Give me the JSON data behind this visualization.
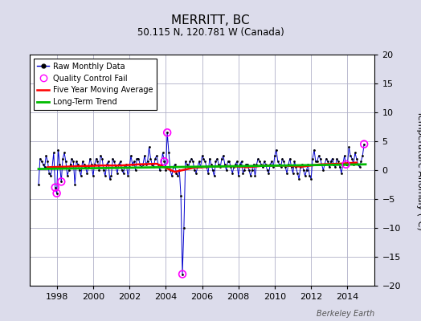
{
  "title": "MERRITT, BC",
  "subtitle": "50.115 N, 120.781 W (Canada)",
  "ylabel": "Temperature Anomaly (°C)",
  "watermark": "Berkeley Earth",
  "xlim": [
    1996.5,
    2015.5
  ],
  "ylim": [
    -20,
    20
  ],
  "yticks": [
    -20,
    -15,
    -10,
    -5,
    0,
    5,
    10,
    15,
    20
  ],
  "xticks": [
    1998,
    2000,
    2002,
    2004,
    2006,
    2008,
    2010,
    2012,
    2014
  ],
  "bg_color": "#dcdceb",
  "plot_bg_color": "#ffffff",
  "grid_color": "#b0b0c8",
  "raw_color": "#0000cc",
  "qc_fail_color": "#ff00ff",
  "moving_avg_color": "#ff0000",
  "trend_color": "#00bb00",
  "raw_data": {
    "x": [
      1997.0,
      1997.083,
      1997.167,
      1997.25,
      1997.333,
      1997.417,
      1997.5,
      1997.583,
      1997.667,
      1997.75,
      1997.833,
      1997.917,
      1998.0,
      1998.083,
      1998.167,
      1998.25,
      1998.333,
      1998.417,
      1998.5,
      1998.583,
      1998.667,
      1998.75,
      1998.833,
      1998.917,
      1999.0,
      1999.083,
      1999.167,
      1999.25,
      1999.333,
      1999.417,
      1999.5,
      1999.583,
      1999.667,
      1999.75,
      1999.833,
      1999.917,
      2000.0,
      2000.083,
      2000.167,
      2000.25,
      2000.333,
      2000.417,
      2000.5,
      2000.583,
      2000.667,
      2000.75,
      2000.833,
      2000.917,
      2001.0,
      2001.083,
      2001.167,
      2001.25,
      2001.333,
      2001.417,
      2001.5,
      2001.583,
      2001.667,
      2001.75,
      2001.833,
      2001.917,
      2002.0,
      2002.083,
      2002.167,
      2002.25,
      2002.333,
      2002.417,
      2002.5,
      2002.583,
      2002.667,
      2002.75,
      2002.833,
      2002.917,
      2003.0,
      2003.083,
      2003.167,
      2003.25,
      2003.333,
      2003.417,
      2003.5,
      2003.583,
      2003.667,
      2003.75,
      2003.833,
      2003.917,
      2004.0,
      2004.083,
      2004.167,
      2004.25,
      2004.333,
      2004.417,
      2004.5,
      2004.583,
      2004.667,
      2004.75,
      2004.833,
      2004.917,
      2005.0,
      2005.083,
      2005.167,
      2005.25,
      2005.333,
      2005.417,
      2005.5,
      2005.583,
      2005.667,
      2005.75,
      2005.833,
      2005.917,
      2006.0,
      2006.083,
      2006.167,
      2006.25,
      2006.333,
      2006.417,
      2006.5,
      2006.583,
      2006.667,
      2006.75,
      2006.833,
      2006.917,
      2007.0,
      2007.083,
      2007.167,
      2007.25,
      2007.333,
      2007.417,
      2007.5,
      2007.583,
      2007.667,
      2007.75,
      2007.833,
      2007.917,
      2008.0,
      2008.083,
      2008.167,
      2008.25,
      2008.333,
      2008.417,
      2008.5,
      2008.583,
      2008.667,
      2008.75,
      2008.833,
      2008.917,
      2009.0,
      2009.083,
      2009.167,
      2009.25,
      2009.333,
      2009.417,
      2009.5,
      2009.583,
      2009.667,
      2009.75,
      2009.833,
      2009.917,
      2010.0,
      2010.083,
      2010.167,
      2010.25,
      2010.333,
      2010.417,
      2010.5,
      2010.583,
      2010.667,
      2010.75,
      2010.833,
      2010.917,
      2011.0,
      2011.083,
      2011.167,
      2011.25,
      2011.333,
      2011.417,
      2011.5,
      2011.583,
      2011.667,
      2011.75,
      2011.833,
      2011.917,
      2012.0,
      2012.083,
      2012.167,
      2012.25,
      2012.333,
      2012.417,
      2012.5,
      2012.583,
      2012.667,
      2012.75,
      2012.833,
      2012.917,
      2013.0,
      2013.083,
      2013.167,
      2013.25,
      2013.333,
      2013.417,
      2013.5,
      2013.583,
      2013.667,
      2013.75,
      2013.833,
      2013.917,
      2014.0,
      2014.083,
      2014.167,
      2014.25,
      2014.333,
      2014.417,
      2014.5,
      2014.583,
      2014.667,
      2014.75,
      2014.833,
      2014.917
    ],
    "y": [
      -2.5,
      2.0,
      1.5,
      1.0,
      0.5,
      2.5,
      1.5,
      -0.5,
      -1.0,
      0.5,
      3.0,
      -3.0,
      -4.0,
      3.5,
      1.0,
      -2.0,
      2.0,
      3.0,
      1.5,
      -1.0,
      0.0,
      1.0,
      2.0,
      1.5,
      -2.5,
      1.5,
      1.0,
      0.0,
      -1.0,
      1.5,
      1.0,
      0.5,
      -0.5,
      0.5,
      2.0,
      1.0,
      -1.0,
      1.0,
      2.0,
      1.5,
      0.0,
      2.5,
      2.0,
      0.0,
      -1.0,
      1.0,
      1.5,
      -1.5,
      -1.0,
      2.0,
      1.5,
      0.5,
      -0.5,
      1.0,
      1.5,
      0.0,
      -0.5,
      0.5,
      1.0,
      -1.0,
      0.5,
      2.5,
      1.0,
      1.5,
      0.0,
      2.0,
      2.0,
      1.0,
      0.5,
      1.0,
      2.5,
      1.0,
      1.5,
      4.0,
      2.0,
      1.0,
      0.5,
      2.0,
      2.5,
      1.0,
      0.0,
      1.0,
      3.0,
      1.5,
      0.0,
      6.5,
      3.0,
      0.0,
      -1.0,
      0.5,
      1.0,
      -0.5,
      -1.0,
      0.0,
      -4.5,
      -18.0,
      -10.0,
      1.5,
      1.0,
      0.5,
      1.5,
      2.0,
      1.5,
      0.0,
      -0.5,
      0.5,
      1.5,
      0.5,
      2.5,
      2.0,
      1.5,
      0.5,
      -0.5,
      2.0,
      1.0,
      0.0,
      -1.0,
      1.5,
      2.0,
      1.0,
      0.5,
      2.0,
      2.5,
      1.0,
      0.0,
      1.5,
      1.5,
      0.5,
      -0.5,
      0.5,
      1.0,
      1.5,
      -1.0,
      1.0,
      1.5,
      -0.5,
      0.0,
      1.0,
      1.0,
      0.0,
      -1.0,
      0.0,
      1.0,
      -1.0,
      1.0,
      2.0,
      1.5,
      1.0,
      0.5,
      1.5,
      1.0,
      0.0,
      -0.5,
      1.0,
      1.5,
      0.5,
      2.5,
      3.5,
      1.5,
      1.0,
      0.5,
      2.0,
      1.5,
      0.5,
      -0.5,
      1.0,
      2.0,
      0.5,
      -0.5,
      1.5,
      0.5,
      -0.5,
      -1.5,
      0.5,
      1.0,
      0.0,
      -1.0,
      0.0,
      1.0,
      -1.0,
      -1.5,
      2.0,
      3.5,
      1.5,
      1.5,
      2.5,
      2.0,
      1.0,
      0.0,
      1.0,
      2.0,
      1.5,
      0.5,
      1.5,
      2.0,
      1.0,
      0.5,
      2.0,
      1.5,
      0.5,
      -0.5,
      1.0,
      2.5,
      1.0,
      1.0,
      4.0,
      2.5,
      2.0,
      1.0,
      3.0,
      2.0,
      1.0,
      0.5,
      1.5,
      2.5,
      4.5
    ]
  },
  "qc_fail_points": {
    "x": [
      1997.917,
      1998.0,
      1998.25,
      2003.917,
      2004.083,
      2004.917,
      2013.917,
      2014.917
    ],
    "y": [
      -3.0,
      -4.0,
      -2.0,
      1.5,
      6.5,
      -18.0,
      1.0,
      4.5
    ]
  },
  "moving_avg": {
    "x": [
      1997.5,
      1998.5,
      1999.5,
      2000.5,
      2001.5,
      2002.5,
      2003.5,
      2004.5,
      2005.5,
      2006.5,
      2007.5,
      2008.5,
      2009.5,
      2010.5,
      2011.5,
      2012.5,
      2013.5,
      2014.5
    ],
    "y": [
      0.5,
      0.6,
      0.7,
      0.8,
      0.8,
      1.0,
      1.1,
      -0.3,
      0.4,
      0.6,
      0.7,
      0.5,
      0.8,
      0.8,
      0.6,
      1.0,
      1.1,
      1.3
    ]
  },
  "trend": {
    "x": [
      1997.0,
      2015.0
    ],
    "y": [
      0.2,
      1.0
    ]
  },
  "title_fontsize": 11,
  "subtitle_fontsize": 8.5,
  "tick_fontsize": 8,
  "legend_fontsize": 7
}
